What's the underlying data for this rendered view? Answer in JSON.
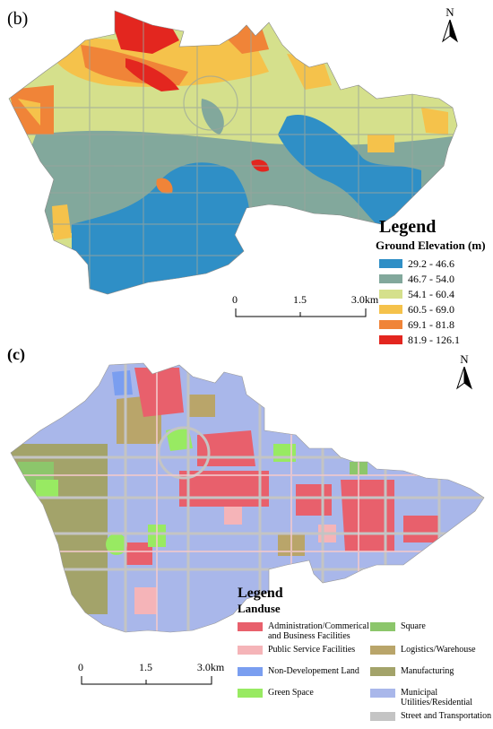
{
  "panel_b": {
    "label": "(b)",
    "north": "N",
    "legend": {
      "title": "Legend",
      "subtitle": "Ground Elevation (m)",
      "classes": [
        {
          "label": "29.2 - 46.6",
          "color": "#2f8fc6"
        },
        {
          "label": "46.7 - 54.0",
          "color": "#82a89c"
        },
        {
          "label": "54.1 - 60.4",
          "color": "#d5e08c"
        },
        {
          "label": "60.5 - 69.0",
          "color": "#f5c24b"
        },
        {
          "label": "69.1 - 81.8",
          "color": "#f08438"
        },
        {
          "label": "81.9 - 126.1",
          "color": "#e3261f"
        }
      ]
    },
    "scale": {
      "ticks": [
        "0",
        "1.5",
        "3.0"
      ],
      "unit": "km"
    }
  },
  "panel_c": {
    "label": "(c)",
    "north": "N",
    "legend": {
      "title": "Legend",
      "subtitle": "Landuse",
      "classes": [
        {
          "label": "Administration/Commerical and Business Facilities",
          "color": "#e8606c"
        },
        {
          "label": "Square",
          "color": "#8cc66b"
        },
        {
          "label": "Public Service Facilities",
          "color": "#f5b4b8"
        },
        {
          "label": "Logistics/Warehouse",
          "color": "#b9a56a"
        },
        {
          "label": "Non-Developement Land",
          "color": "#7a9ef0"
        },
        {
          "label": "Manufacturing",
          "color": "#a3a36a"
        },
        {
          "label": "Green Space",
          "color": "#98ea62"
        },
        {
          "label": "Municipal Utilities/Residential",
          "color": "#a9b7ea"
        },
        {
          "label": "",
          "color": ""
        },
        {
          "label": "Street and Transportation",
          "color": "#c4c4c4"
        }
      ]
    },
    "scale": {
      "ticks": [
        "0",
        "1.5",
        "3.0"
      ],
      "unit": "km"
    }
  }
}
